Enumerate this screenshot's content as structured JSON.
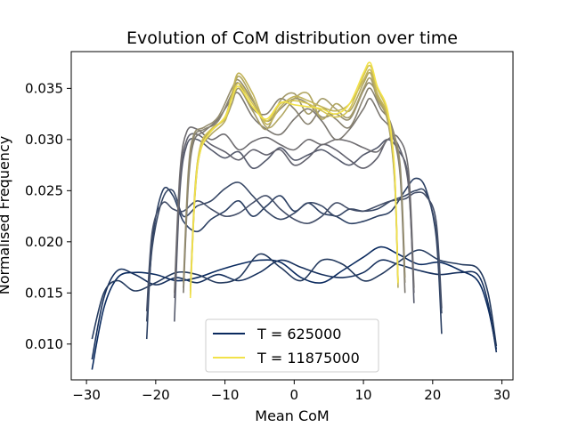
{
  "chart_data": {
    "type": "line",
    "title": "Evolution of CoM distribution over time",
    "xlabel": "Mean CoM",
    "ylabel": "Normalised Frequency",
    "xlim": [
      -32.2,
      31.6
    ],
    "ylim": [
      0.0065,
      0.0386
    ],
    "xticks": [
      -30,
      -20,
      -10,
      0,
      10,
      20,
      30
    ],
    "yticks": [
      0.01,
      0.015,
      0.02,
      0.025,
      0.03,
      0.035
    ],
    "xtick_labels": [
      "−30",
      "−20",
      "−10",
      "0",
      "10",
      "20",
      "30"
    ],
    "ytick_labels": [
      "0.010",
      "0.015",
      "0.020",
      "0.025",
      "0.030",
      "0.035"
    ],
    "grid": false,
    "legend": {
      "placement": "lower-center",
      "entries": [
        {
          "label": "T = 625000",
          "color": "#0a2a5e"
        },
        {
          "label": "T = 11875000",
          "color": "#f2e24a"
        }
      ]
    },
    "series": [
      {
        "color": "#0a2a5e",
        "x": [
          -29.2,
          -27.5,
          -25.5,
          -23,
          -20,
          -17,
          -14,
          -11,
          -8,
          -5,
          -2,
          1,
          4,
          7,
          10,
          12.5,
          15,
          18,
          21,
          24,
          26.5,
          28,
          29.2
        ],
        "y": [
          0.0075,
          0.0135,
          0.0165,
          0.017,
          0.0168,
          0.0162,
          0.0165,
          0.0172,
          0.0178,
          0.0182,
          0.018,
          0.0165,
          0.016,
          0.0172,
          0.0185,
          0.0195,
          0.0188,
          0.0178,
          0.018,
          0.0172,
          0.0162,
          0.0135,
          0.0095
        ]
      },
      {
        "color": "#152f5c",
        "x": [
          -29.2,
          -27.5,
          -25.5,
          -23,
          -20,
          -17,
          -14,
          -11,
          -8,
          -5,
          -2,
          1,
          4,
          7,
          10,
          12.5,
          15,
          18,
          21,
          24,
          26.5,
          28,
          29.2
        ],
        "y": [
          0.0085,
          0.0145,
          0.0172,
          0.0168,
          0.0158,
          0.0165,
          0.016,
          0.0168,
          0.0162,
          0.017,
          0.0182,
          0.0175,
          0.0168,
          0.0165,
          0.017,
          0.0182,
          0.0178,
          0.0172,
          0.0168,
          0.017,
          0.0168,
          0.014,
          0.0092
        ]
      },
      {
        "color": "#243a5e",
        "x": [
          -29.2,
          -27.5,
          -25.5,
          -23,
          -20,
          -17,
          -14,
          -11,
          -8,
          -5,
          -2,
          1,
          4,
          7,
          10,
          12.5,
          15,
          18,
          21,
          24,
          26.5,
          28,
          29.2
        ],
        "y": [
          0.0105,
          0.015,
          0.0162,
          0.0152,
          0.016,
          0.017,
          0.0168,
          0.016,
          0.0165,
          0.0188,
          0.0175,
          0.0162,
          0.0182,
          0.0178,
          0.0162,
          0.0168,
          0.018,
          0.0192,
          0.0182,
          0.0178,
          0.0174,
          0.015,
          0.0098
        ]
      },
      {
        "color": "#2c4063",
        "x": [
          -21.3,
          -20.5,
          -19,
          -17.5,
          -16,
          -14,
          -12,
          -10,
          -8,
          -6,
          -4,
          -2,
          0,
          2,
          4,
          6,
          8,
          10,
          12,
          14,
          16,
          17.5,
          19,
          20.5,
          21.3
        ],
        "y": [
          0.0105,
          0.02,
          0.025,
          0.0245,
          0.022,
          0.021,
          0.0222,
          0.023,
          0.024,
          0.0225,
          0.0235,
          0.0245,
          0.023,
          0.0238,
          0.0228,
          0.0225,
          0.0218,
          0.022,
          0.0225,
          0.023,
          0.025,
          0.0262,
          0.0252,
          0.0205,
          0.011
        ]
      },
      {
        "color": "#384866",
        "x": [
          -21.3,
          -20.5,
          -19,
          -17.5,
          -16,
          -14,
          -12,
          -10,
          -8,
          -6,
          -4,
          -2,
          0,
          2,
          4,
          6,
          8,
          10,
          12,
          14,
          16,
          17.5,
          19,
          20.5,
          21.3
        ],
        "y": [
          0.0122,
          0.0195,
          0.0242,
          0.025,
          0.0225,
          0.0235,
          0.024,
          0.0252,
          0.0258,
          0.0245,
          0.023,
          0.0222,
          0.0228,
          0.0238,
          0.0235,
          0.0225,
          0.0232,
          0.023,
          0.0232,
          0.024,
          0.0245,
          0.025,
          0.0248,
          0.021,
          0.013
        ]
      },
      {
        "color": "#444f69",
        "x": [
          -21.3,
          -20.5,
          -19,
          -17.5,
          -16,
          -14,
          -12,
          -10,
          -8,
          -6,
          -4,
          -2,
          0,
          2,
          4,
          6,
          8,
          10,
          12,
          14,
          16,
          17.5,
          19,
          20.5,
          21.3
        ],
        "y": [
          0.0132,
          0.021,
          0.0238,
          0.0232,
          0.023,
          0.024,
          0.0232,
          0.0225,
          0.0228,
          0.0238,
          0.0245,
          0.0232,
          0.0222,
          0.0218,
          0.0225,
          0.0238,
          0.0232,
          0.023,
          0.0235,
          0.024,
          0.0242,
          0.0248,
          0.0245,
          0.022,
          0.0135
        ]
      },
      {
        "color": "#555a6c",
        "x": [
          -17.3,
          -16.5,
          -15.5,
          -14,
          -12,
          -10,
          -8,
          -6,
          -4,
          -2,
          0,
          2,
          4,
          6,
          8,
          10,
          12,
          13.5,
          15,
          16.5,
          17.3
        ],
        "y": [
          0.0122,
          0.025,
          0.0295,
          0.03,
          0.029,
          0.0282,
          0.0288,
          0.0272,
          0.028,
          0.0292,
          0.028,
          0.0285,
          0.029,
          0.0282,
          0.0275,
          0.0285,
          0.0292,
          0.03,
          0.029,
          0.026,
          0.014
        ]
      },
      {
        "color": "#62626e",
        "x": [
          -17.3,
          -16.5,
          -15.5,
          -14,
          -12,
          -10,
          -8,
          -6,
          -4,
          -2,
          0,
          2,
          4,
          6,
          8,
          10,
          12,
          13.5,
          15,
          16.5,
          17.3
        ],
        "y": [
          0.0145,
          0.026,
          0.03,
          0.0305,
          0.0295,
          0.0288,
          0.028,
          0.029,
          0.0285,
          0.029,
          0.0275,
          0.0282,
          0.0295,
          0.029,
          0.028,
          0.0272,
          0.0282,
          0.03,
          0.0295,
          0.0255,
          0.015
        ]
      },
      {
        "color": "#6e6c70",
        "x": [
          -17.3,
          -16.5,
          -15.5,
          -14,
          -12,
          -10,
          -8,
          -6,
          -4,
          -2,
          0,
          2,
          4,
          6,
          8,
          10,
          12,
          13.5,
          15,
          16.5,
          17.3
        ],
        "y": [
          0.015,
          0.0268,
          0.0308,
          0.031,
          0.03,
          0.0305,
          0.029,
          0.0298,
          0.0302,
          0.0295,
          0.029,
          0.03,
          0.0295,
          0.03,
          0.0298,
          0.0292,
          0.0288,
          0.03,
          0.0302,
          0.027,
          0.0155
        ]
      },
      {
        "color": "#7b7770",
        "x": [
          -16,
          -15.3,
          -14.5,
          -13,
          -11,
          -9,
          -8,
          -6,
          -4,
          -2,
          0,
          2,
          4,
          6,
          8,
          10,
          11,
          12.5,
          14,
          15.3,
          16
        ],
        "y": [
          0.015,
          0.0255,
          0.0298,
          0.0308,
          0.032,
          0.034,
          0.0345,
          0.0322,
          0.031,
          0.0305,
          0.032,
          0.033,
          0.0318,
          0.03,
          0.031,
          0.033,
          0.034,
          0.0322,
          0.0308,
          0.0265,
          0.015
        ]
      },
      {
        "color": "#888270",
        "x": [
          -16,
          -15.3,
          -14.5,
          -13,
          -11,
          -9,
          -8,
          -6,
          -4,
          -2,
          0,
          2,
          4,
          6,
          8,
          10,
          11,
          12.5,
          14,
          15.3,
          16
        ],
        "y": [
          0.0155,
          0.026,
          0.0302,
          0.031,
          0.0318,
          0.0345,
          0.0355,
          0.033,
          0.0325,
          0.034,
          0.033,
          0.0315,
          0.033,
          0.032,
          0.0312,
          0.034,
          0.035,
          0.033,
          0.0315,
          0.027,
          0.016
        ]
      },
      {
        "color": "#958d6e",
        "x": [
          -16,
          -15.3,
          -14.5,
          -13,
          -11,
          -9,
          -8,
          -6,
          -4,
          -2,
          0,
          2,
          4,
          6,
          8,
          10,
          11,
          12.5,
          14,
          15.3,
          16
        ],
        "y": [
          0.016,
          0.0268,
          0.0305,
          0.0312,
          0.0322,
          0.035,
          0.0358,
          0.0338,
          0.0318,
          0.033,
          0.034,
          0.0335,
          0.0322,
          0.0325,
          0.032,
          0.0348,
          0.0355,
          0.0338,
          0.0312,
          0.0275,
          0.0165
        ]
      },
      {
        "color": "#a39a69",
        "x": [
          -15,
          -14.3,
          -13.5,
          -12,
          -10,
          -9,
          -8,
          -6,
          -4,
          -2,
          0,
          2,
          4,
          6,
          8,
          10,
          11,
          12,
          13.5,
          14.5,
          15
        ],
        "y": [
          0.0152,
          0.025,
          0.0292,
          0.031,
          0.032,
          0.0335,
          0.035,
          0.0328,
          0.031,
          0.0338,
          0.0345,
          0.0325,
          0.034,
          0.033,
          0.0322,
          0.035,
          0.036,
          0.034,
          0.0318,
          0.026,
          0.016
        ]
      },
      {
        "color": "#b2a762",
        "x": [
          -15,
          -14.3,
          -13.5,
          -12,
          -10,
          -9,
          -8,
          -6,
          -4,
          -2,
          0,
          2,
          4,
          6,
          8,
          10,
          11,
          12,
          13.5,
          14.5,
          15
        ],
        "y": [
          0.0148,
          0.0248,
          0.029,
          0.0305,
          0.0318,
          0.0342,
          0.0362,
          0.034,
          0.0312,
          0.0322,
          0.034,
          0.0345,
          0.032,
          0.0335,
          0.0328,
          0.0355,
          0.0365,
          0.0342,
          0.032,
          0.0262,
          0.0155
        ]
      },
      {
        "color": "#c2b45a",
        "x": [
          -15,
          -14.3,
          -13.5,
          -12,
          -10,
          -9,
          -8,
          -6,
          -4,
          -2,
          0,
          2,
          4,
          6,
          8,
          10,
          11,
          12,
          13.5,
          14.5,
          15
        ],
        "y": [
          0.0155,
          0.0255,
          0.0292,
          0.0308,
          0.0322,
          0.0345,
          0.0365,
          0.0345,
          0.0315,
          0.0332,
          0.0342,
          0.0338,
          0.0332,
          0.0328,
          0.0335,
          0.0358,
          0.0368,
          0.0345,
          0.0322,
          0.0265,
          0.0162
        ]
      },
      {
        "color": "#d4c452",
        "x": [
          -15,
          -14.3,
          -13.5,
          -12,
          -10,
          -9,
          -8,
          -6,
          -4,
          -2,
          0,
          2,
          4,
          6,
          8,
          10,
          11,
          12,
          13.5,
          14.5,
          15
        ],
        "y": [
          0.015,
          0.0252,
          0.0295,
          0.031,
          0.032,
          0.034,
          0.0355,
          0.0335,
          0.0318,
          0.0335,
          0.0338,
          0.0335,
          0.0328,
          0.0322,
          0.033,
          0.0362,
          0.0372,
          0.035,
          0.0325,
          0.0268,
          0.0158
        ]
      },
      {
        "color": "#f2e24a",
        "x": [
          -15,
          -14.3,
          -13.5,
          -12,
          -10,
          -9,
          -8,
          -6,
          -4,
          -2,
          0,
          2,
          4,
          6,
          8,
          10,
          11,
          12,
          13.5,
          14.5,
          15
        ],
        "y": [
          0.0145,
          0.025,
          0.029,
          0.0308,
          0.0322,
          0.034,
          0.0352,
          0.0332,
          0.032,
          0.0336,
          0.0334,
          0.0332,
          0.033,
          0.0325,
          0.0335,
          0.0365,
          0.0375,
          0.0352,
          0.0328,
          0.027,
          0.016
        ]
      }
    ]
  }
}
